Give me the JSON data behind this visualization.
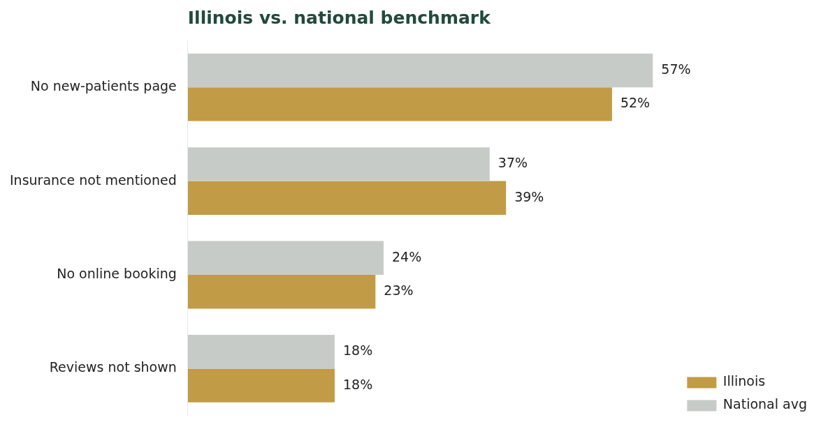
{
  "chart_data": {
    "type": "bar",
    "orientation": "horizontal",
    "title": "Illinois vs. national benchmark",
    "categories": [
      "No new-patients page",
      "Insurance not mentioned",
      "No online booking",
      "Reviews not shown"
    ],
    "series": [
      {
        "name": "National avg",
        "color": "#c7cbc8",
        "values": [
          57,
          37,
          24,
          18
        ],
        "value_labels": [
          "57%",
          "37%",
          "24%",
          "18%"
        ]
      },
      {
        "name": "Illinois",
        "color": "#c19b45",
        "values": [
          52,
          39,
          23,
          18
        ],
        "value_labels": [
          "52%",
          "39%",
          "23%",
          "18%"
        ]
      }
    ],
    "legend": "bottom right"
  }
}
